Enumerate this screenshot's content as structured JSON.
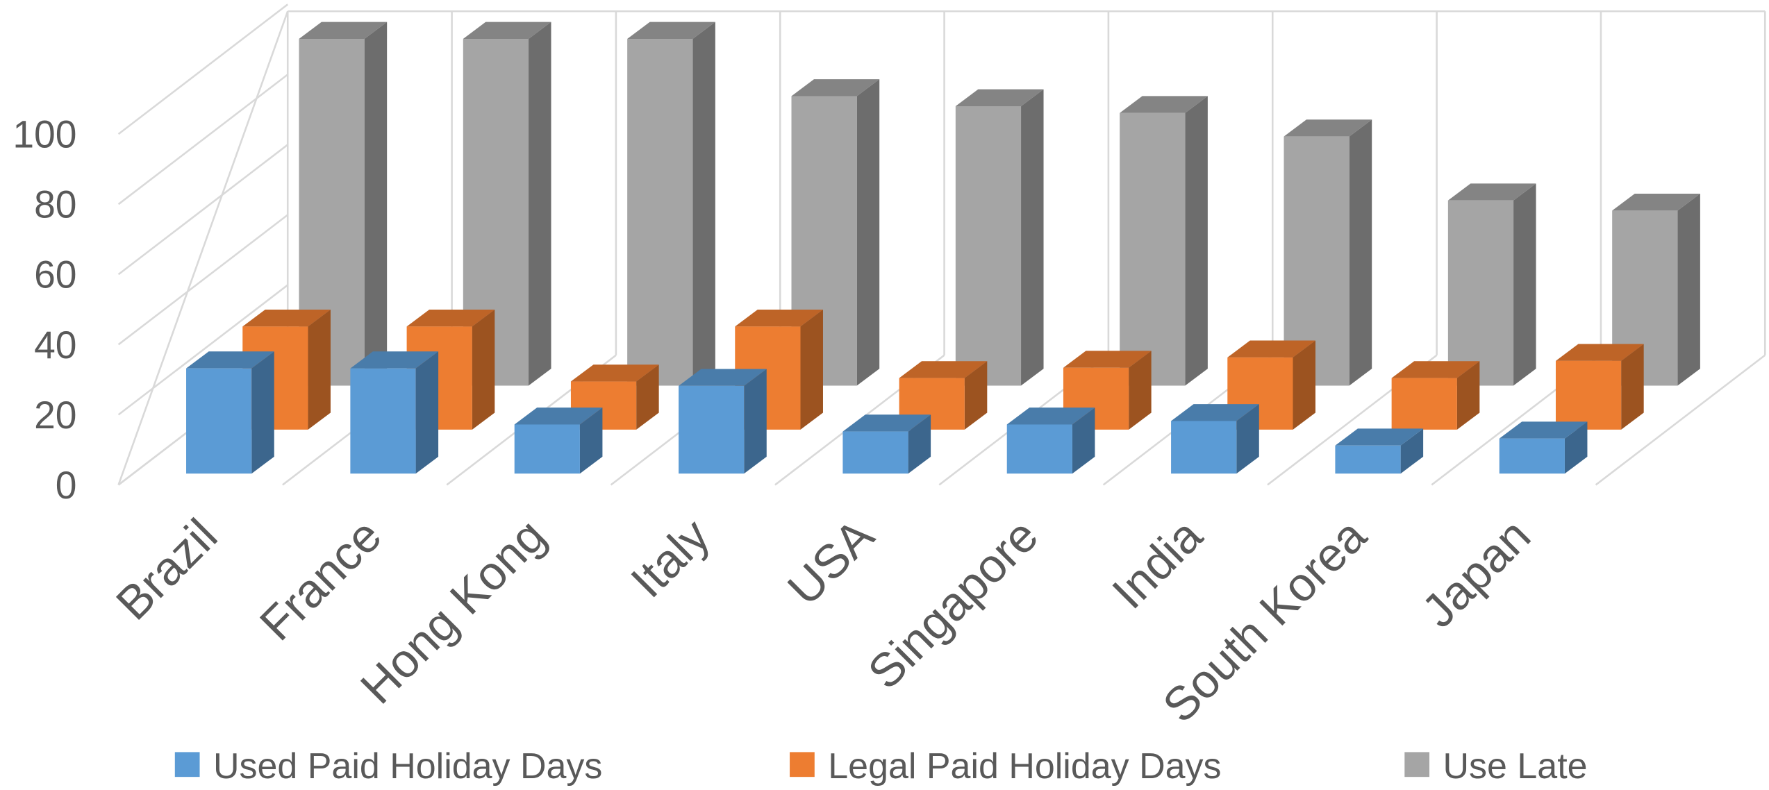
{
  "chart_data": {
    "type": "bar3d",
    "categories": [
      "Brazil",
      "France",
      "Hong Kong",
      "Italy",
      "USA",
      "Singapore",
      "India",
      "South Korea",
      "Japan"
    ],
    "series": [
      {
        "name": "Used Paid Holiday Days",
        "color": "#5b9bd5",
        "values": [
          30,
          30,
          14,
          25,
          12,
          14,
          15,
          8,
          10
        ]
      },
      {
        "name": "Legal Paid Holiday Days",
        "color": "#ed7d31",
        "values": [
          30,
          30,
          14,
          30,
          15,
          18,
          21,
          15,
          20
        ]
      },
      {
        "name": "Use Late",
        "color": "#a5a5a5",
        "values": [
          103,
          103,
          103,
          86,
          83,
          81,
          74,
          55,
          52
        ]
      }
    ],
    "ylim": [
      0,
      135
    ],
    "yticks": [
      0,
      20,
      40,
      60,
      80,
      100
    ],
    "grid": true,
    "legend": "bottom"
  }
}
